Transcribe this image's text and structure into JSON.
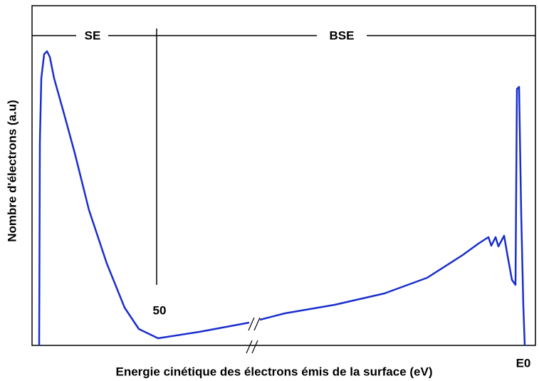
{
  "labels": {
    "se": "SE",
    "bse": "BSE",
    "boundary": "50",
    "e0": "E0"
  },
  "axes": {
    "y_label": "Nombre d'électrons (a.u)",
    "x_label": "Energie cinétique des électrons émis de la surface (eV)"
  }
}
